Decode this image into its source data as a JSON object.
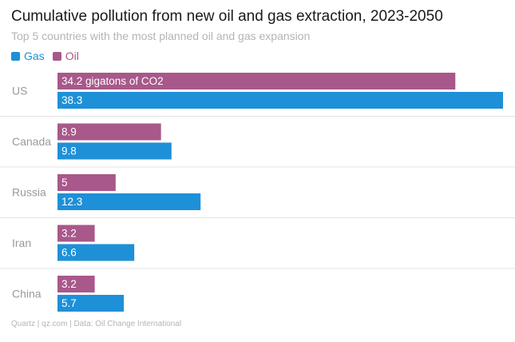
{
  "chart_data": {
    "type": "bar",
    "orientation": "horizontal",
    "title": "Cumulative pollution from new oil and gas extraction, 2023-2050",
    "subtitle": "Top 5 countries with the most planned oil and gas expansion",
    "categories": [
      "US",
      "Canada",
      "Russia",
      "Iran",
      "China"
    ],
    "series": [
      {
        "name": "Oil",
        "color": "#a8588a",
        "values": [
          34.2,
          8.9,
          5,
          3.2,
          3.2
        ]
      },
      {
        "name": "Gas",
        "color": "#1e90d8",
        "values": [
          38.3,
          9.8,
          12.3,
          6.6,
          5.7
        ]
      }
    ],
    "legend": [
      {
        "name": "Gas",
        "color": "#1e90d8"
      },
      {
        "name": "Oil",
        "color": "#a8588a"
      }
    ],
    "first_value_label_suffix": " gigatons of CO2",
    "unit": "gigatons of CO2",
    "xlim": [
      0,
      38.3
    ],
    "legend_position": "top-left",
    "grid": false,
    "source": "Quartz | qz.com | Data: Oil Change International"
  }
}
